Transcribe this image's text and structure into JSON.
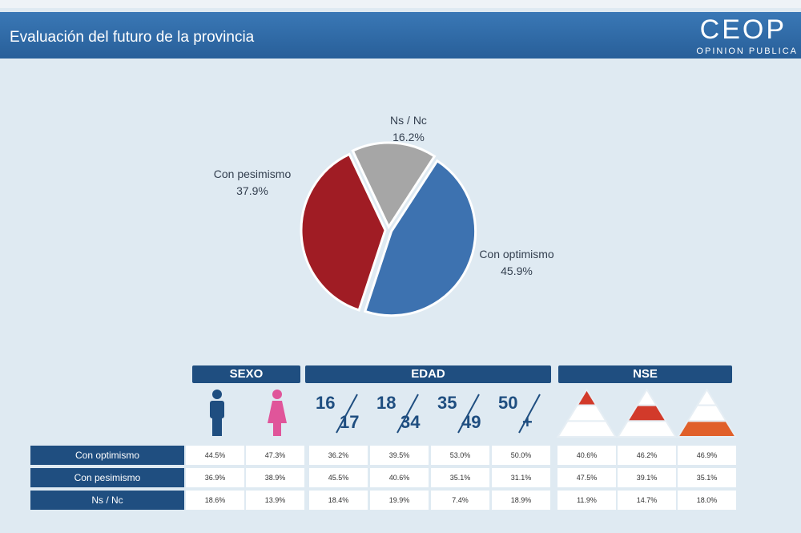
{
  "header": {
    "title": "Evaluación del futuro de la provincia",
    "logo": "CEOP",
    "logo_sub": "OPINION PUBLICA"
  },
  "chart_data": {
    "type": "pie",
    "categories": [
      "Con optimismo",
      "Con pesimismo",
      "Ns / Nc"
    ],
    "values": [
      45.9,
      37.9,
      16.2
    ],
    "value_labels": [
      "45.9%",
      "37.9%",
      "16.2%"
    ],
    "colors": [
      "#3d72b0",
      "#a01c24",
      "#a6a6a6"
    ]
  },
  "table": {
    "groups": [
      "SEXO",
      "EDAD",
      "NSE"
    ],
    "ages": [
      [
        "16",
        "17"
      ],
      [
        "18",
        "34"
      ],
      [
        "35",
        "49"
      ],
      [
        "50",
        "+"
      ]
    ],
    "rows": [
      [
        "Con optimismo",
        "44.5%",
        "47.3%",
        "36.2%",
        "39.5%",
        "53.0%",
        "50.0%",
        "40.6%",
        "46.2%",
        "46.9%"
      ],
      [
        "Con pesimismo",
        "36.9%",
        "38.9%",
        "45.5%",
        "40.6%",
        "35.1%",
        "31.1%",
        "47.5%",
        "39.1%",
        "35.1%"
      ],
      [
        "Ns / Nc",
        "18.6%",
        "13.9%",
        "18.4%",
        "19.9%",
        "7.4%",
        "18.9%",
        "11.9%",
        "14.7%",
        "18.0%"
      ]
    ]
  }
}
